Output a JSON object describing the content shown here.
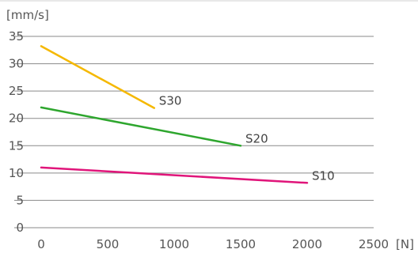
{
  "chart_data": {
    "type": "line",
    "title": "",
    "xlabel": "[N]",
    "ylabel": "[mm/s]",
    "xlim": [
      0,
      2500
    ],
    "ylim": [
      0,
      35
    ],
    "x_ticks": [
      0,
      500,
      1000,
      1500,
      2000,
      2500
    ],
    "y_ticks": [
      0,
      5,
      10,
      15,
      20,
      25,
      30,
      35
    ],
    "grid": "horizontal",
    "legend": "none",
    "series": [
      {
        "name": "S30",
        "color": "#f5b800",
        "points": [
          [
            0,
            33.2
          ],
          [
            850,
            21.9
          ]
        ]
      },
      {
        "name": "S20",
        "color": "#2ea62e",
        "points": [
          [
            0,
            22.0
          ],
          [
            1500,
            15.0
          ]
        ]
      },
      {
        "name": "S10",
        "color": "#e0157a",
        "points": [
          [
            0,
            11.0
          ],
          [
            2000,
            8.2
          ]
        ]
      }
    ]
  }
}
